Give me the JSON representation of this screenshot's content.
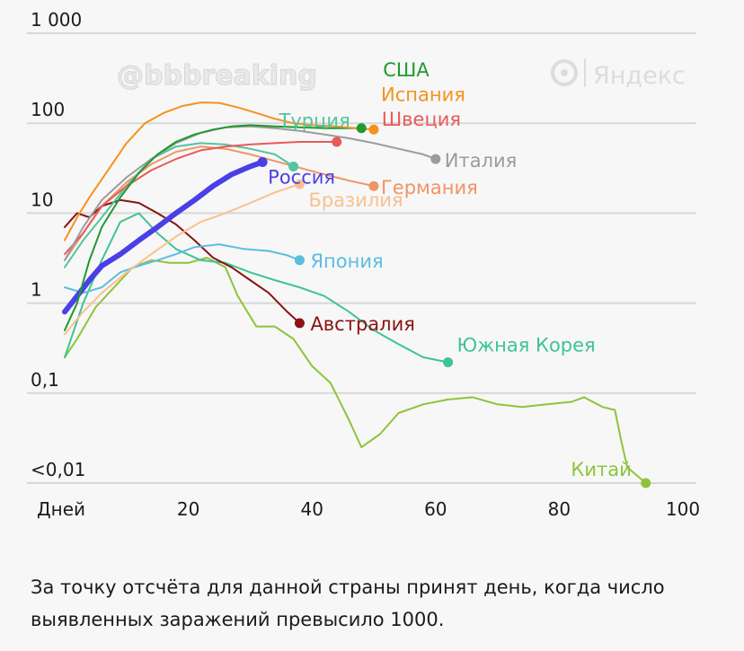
{
  "watermark": "@bbbreaking",
  "brand": "Яндекс",
  "caption": "За точку отсчёта для данной страны принят день, когда число выявленных заражений превысило 1000.",
  "chart_data": {
    "type": "line",
    "y_scale": "log",
    "ylim": [
      0.01,
      1000
    ],
    "xlim": [
      0,
      100
    ],
    "grid": true,
    "legend": "none",
    "y_ticks": [
      {
        "value": 1000,
        "label": "1 000"
      },
      {
        "value": 100,
        "label": "100"
      },
      {
        "value": 10,
        "label": "10"
      },
      {
        "value": 1,
        "label": "1"
      },
      {
        "value": 0.1,
        "label": "0,1"
      },
      {
        "value": 0.01,
        "label": "<0,01"
      }
    ],
    "x_ticks": [
      {
        "value": 0,
        "label": "Дней"
      },
      {
        "value": 20,
        "label": "20"
      },
      {
        "value": 40,
        "label": "40"
      },
      {
        "value": 60,
        "label": "60"
      },
      {
        "value": 80,
        "label": "80"
      },
      {
        "value": 100,
        "label": "100"
      }
    ],
    "series": [
      {
        "name": "Китай",
        "color": "#8dc43a",
        "width": 2,
        "end_dot": true,
        "points": [
          [
            0,
            0.25
          ],
          [
            2,
            0.4
          ],
          [
            5,
            0.9
          ],
          [
            8,
            1.5
          ],
          [
            11,
            2.5
          ],
          [
            14,
            3.0
          ],
          [
            17,
            2.8
          ],
          [
            20,
            2.8
          ],
          [
            23,
            3.2
          ],
          [
            26,
            2.5
          ],
          [
            28,
            1.2
          ],
          [
            31,
            0.55
          ],
          [
            34,
            0.55
          ],
          [
            37,
            0.4
          ],
          [
            40,
            0.2
          ],
          [
            43,
            0.13
          ],
          [
            46,
            0.05
          ],
          [
            48,
            0.025
          ],
          [
            51,
            0.035
          ],
          [
            54,
            0.06
          ],
          [
            58,
            0.075
          ],
          [
            62,
            0.085
          ],
          [
            66,
            0.09
          ],
          [
            70,
            0.075
          ],
          [
            74,
            0.07
          ],
          [
            78,
            0.075
          ],
          [
            82,
            0.08
          ],
          [
            84,
            0.09
          ],
          [
            87,
            0.07
          ],
          [
            89,
            0.065
          ],
          [
            90,
            0.03
          ],
          [
            91,
            0.015
          ],
          [
            94,
            0.01
          ]
        ]
      },
      {
        "name": "Южная Корея",
        "color": "#3ec493",
        "width": 2,
        "end_dot": true,
        "points": [
          [
            0,
            0.25
          ],
          [
            3,
            1.0
          ],
          [
            6,
            3.0
          ],
          [
            9,
            8.0
          ],
          [
            12,
            10.0
          ],
          [
            15,
            6.0
          ],
          [
            18,
            4.0
          ],
          [
            22,
            3.0
          ],
          [
            26,
            2.8
          ],
          [
            30,
            2.2
          ],
          [
            34,
            1.8
          ],
          [
            38,
            1.5
          ],
          [
            42,
            1.2
          ],
          [
            46,
            0.8
          ],
          [
            50,
            0.5
          ],
          [
            54,
            0.35
          ],
          [
            58,
            0.25
          ],
          [
            62,
            0.22
          ]
        ]
      },
      {
        "name": "Австралия",
        "color": "#8b1212",
        "width": 2,
        "end_dot": true,
        "points": [
          [
            0,
            7.0
          ],
          [
            2,
            10.0
          ],
          [
            4,
            9.0
          ],
          [
            6,
            12.0
          ],
          [
            9,
            14.0
          ],
          [
            12,
            13.0
          ],
          [
            15,
            10.0
          ],
          [
            18,
            7.5
          ],
          [
            21,
            5.0
          ],
          [
            24,
            3.2
          ],
          [
            27,
            2.5
          ],
          [
            30,
            1.8
          ],
          [
            33,
            1.3
          ],
          [
            36,
            0.8
          ],
          [
            38,
            0.6
          ]
        ]
      },
      {
        "name": "Япония",
        "color": "#5bbde0",
        "width": 2,
        "end_dot": true,
        "points": [
          [
            0,
            1.5
          ],
          [
            3,
            1.3
          ],
          [
            6,
            1.5
          ],
          [
            9,
            2.2
          ],
          [
            12,
            2.6
          ],
          [
            15,
            3.0
          ],
          [
            18,
            3.5
          ],
          [
            21,
            4.2
          ],
          [
            25,
            4.5
          ],
          [
            29,
            4.0
          ],
          [
            33,
            3.8
          ],
          [
            36,
            3.4
          ],
          [
            38,
            3.0
          ]
        ]
      },
      {
        "name": "Бразилия",
        "color": "#f9c190",
        "width": 2,
        "end_dot": true,
        "points": [
          [
            0,
            0.45
          ],
          [
            3,
            0.8
          ],
          [
            6,
            1.3
          ],
          [
            10,
            2.2
          ],
          [
            14,
            3.5
          ],
          [
            18,
            5.5
          ],
          [
            22,
            8.0
          ],
          [
            26,
            10.0
          ],
          [
            30,
            13.0
          ],
          [
            34,
            17.0
          ],
          [
            38,
            21.0
          ]
        ]
      },
      {
        "name": "Германия",
        "color": "#ef9467",
        "width": 2,
        "end_dot": true,
        "points": [
          [
            0,
            3.0
          ],
          [
            3,
            6.0
          ],
          [
            6,
            12.0
          ],
          [
            10,
            22.0
          ],
          [
            14,
            35.0
          ],
          [
            18,
            48.0
          ],
          [
            22,
            55.0
          ],
          [
            26,
            52.0
          ],
          [
            30,
            45.0
          ],
          [
            34,
            38.0
          ],
          [
            38,
            32.0
          ],
          [
            42,
            27.0
          ],
          [
            46,
            23.0
          ],
          [
            50,
            20.0
          ]
        ]
      },
      {
        "name": "Турция",
        "color": "#53c4a0",
        "width": 2,
        "end_dot": true,
        "points": [
          [
            0,
            2.5
          ],
          [
            3,
            5.0
          ],
          [
            6,
            9.0
          ],
          [
            10,
            20.0
          ],
          [
            14,
            40.0
          ],
          [
            18,
            55.0
          ],
          [
            22,
            60.0
          ],
          [
            26,
            58.0
          ],
          [
            30,
            52.0
          ],
          [
            34,
            45.0
          ],
          [
            37,
            33.0
          ]
        ]
      },
      {
        "name": "Россия",
        "color": "#4b3fe6",
        "width": 6,
        "end_dot": true,
        "points": [
          [
            0,
            0.8
          ],
          [
            2,
            1.2
          ],
          [
            4,
            1.8
          ],
          [
            6,
            2.6
          ],
          [
            9,
            3.5
          ],
          [
            12,
            5.0
          ],
          [
            15,
            7.0
          ],
          [
            18,
            10.0
          ],
          [
            21,
            14.0
          ],
          [
            24,
            20.0
          ],
          [
            27,
            27.0
          ],
          [
            30,
            33.0
          ],
          [
            32,
            37.0
          ]
        ]
      },
      {
        "name": "Швеция",
        "color": "#e85a5a",
        "width": 2,
        "end_dot": true,
        "points": [
          [
            0,
            3.5
          ],
          [
            3,
            6.0
          ],
          [
            6,
            12.0
          ],
          [
            10,
            20.0
          ],
          [
            14,
            30.0
          ],
          [
            18,
            40.0
          ],
          [
            22,
            50.0
          ],
          [
            26,
            55.0
          ],
          [
            30,
            58.0
          ],
          [
            34,
            60.0
          ],
          [
            38,
            62.0
          ],
          [
            42,
            62.0
          ],
          [
            44,
            62.0
          ]
        ]
      },
      {
        "name": "Италия",
        "color": "#9b9b9b",
        "width": 2,
        "end_dot": true,
        "points": [
          [
            0,
            3.0
          ],
          [
            3,
            7.0
          ],
          [
            6,
            14.0
          ],
          [
            10,
            25.0
          ],
          [
            14,
            40.0
          ],
          [
            18,
            60.0
          ],
          [
            22,
            78.0
          ],
          [
            26,
            90.0
          ],
          [
            30,
            92.0
          ],
          [
            34,
            88.0
          ],
          [
            38,
            82.0
          ],
          [
            42,
            75.0
          ],
          [
            46,
            68.0
          ],
          [
            50,
            60.0
          ],
          [
            54,
            52.0
          ],
          [
            58,
            45.0
          ],
          [
            60,
            40.0
          ]
        ]
      },
      {
        "name": "США",
        "color": "#1f9a2e",
        "width": 2,
        "end_dot": true,
        "points": [
          [
            0,
            0.5
          ],
          [
            2,
            1.0
          ],
          [
            4,
            3.0
          ],
          [
            6,
            7.0
          ],
          [
            9,
            15.0
          ],
          [
            12,
            28.0
          ],
          [
            15,
            45.0
          ],
          [
            18,
            62.0
          ],
          [
            21,
            75.0
          ],
          [
            24,
            85.0
          ],
          [
            27,
            92.0
          ],
          [
            30,
            95.0
          ],
          [
            34,
            92.0
          ],
          [
            38,
            90.0
          ],
          [
            42,
            88.0
          ],
          [
            46,
            88.0
          ],
          [
            48,
            88.0
          ]
        ]
      },
      {
        "name": "Испания",
        "color": "#f5921e",
        "width": 2,
        "end_dot": true,
        "points": [
          [
            0,
            5.0
          ],
          [
            2,
            9.0
          ],
          [
            4,
            15.0
          ],
          [
            7,
            30.0
          ],
          [
            10,
            60.0
          ],
          [
            13,
            100.0
          ],
          [
            16,
            130.0
          ],
          [
            19,
            155.0
          ],
          [
            22,
            170.0
          ],
          [
            25,
            168.0
          ],
          [
            28,
            150.0
          ],
          [
            31,
            130.0
          ],
          [
            34,
            112.0
          ],
          [
            37,
            100.0
          ],
          [
            40,
            95.0
          ],
          [
            44,
            92.0
          ],
          [
            47,
            88.0
          ],
          [
            50,
            85.0
          ]
        ]
      }
    ],
    "labels": [
      {
        "series": "США",
        "text": "США"
      },
      {
        "series": "Испания",
        "text": "Испания"
      },
      {
        "series": "Турция",
        "text": "Турция"
      },
      {
        "series": "Швеция",
        "text": "Швеция"
      },
      {
        "series": "Италия",
        "text": "Италия"
      },
      {
        "series": "Россия",
        "text": "Россия"
      },
      {
        "series": "Германия",
        "text": "Германия"
      },
      {
        "series": "Бразилия",
        "text": "Бразилия"
      },
      {
        "series": "Япония",
        "text": "Япония"
      },
      {
        "series": "Австралия",
        "text": "Австралия"
      },
      {
        "series": "Южная Корея",
        "text": "Южная Корея"
      },
      {
        "series": "Китай",
        "text": "Китай"
      }
    ]
  }
}
